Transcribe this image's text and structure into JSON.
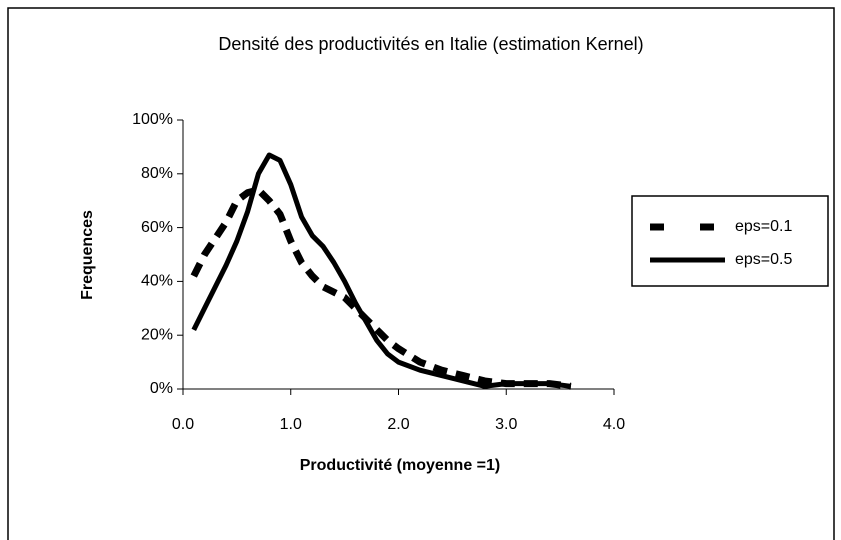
{
  "chart_data": {
    "type": "line",
    "title": "Densité des productivités en Italie (estimation Kernel)",
    "x_label": "Productivité (moyenne =1)",
    "y_label": "Frequences",
    "x": [
      0.1,
      0.2,
      0.3,
      0.4,
      0.5,
      0.6,
      0.7,
      0.8,
      0.9,
      1.0,
      1.1,
      1.2,
      1.3,
      1.4,
      1.5,
      1.6,
      1.7,
      1.8,
      1.9,
      2.0,
      2.2,
      2.4,
      2.6,
      2.8,
      3.0,
      3.2,
      3.4,
      3.6
    ],
    "series": [
      {
        "name": "eps=0.1",
        "color": "#000000",
        "dash": true,
        "values": [
          42,
          50,
          56,
          62,
          70,
          73,
          74,
          70,
          65,
          55,
          47,
          42,
          38,
          36,
          34,
          30,
          26,
          22,
          18,
          15,
          10,
          7,
          5,
          3,
          2,
          2,
          2,
          1
        ]
      },
      {
        "name": "eps=0.5",
        "color": "#000000",
        "dash": false,
        "values": [
          22,
          30,
          38,
          46,
          55,
          66,
          80,
          87,
          85,
          76,
          64,
          57,
          53,
          47,
          40,
          32,
          25,
          18,
          13,
          10,
          7,
          5,
          3,
          1,
          2,
          2,
          2,
          1
        ]
      }
    ],
    "xlim": [
      0,
      4
    ],
    "xticks": [
      {
        "value": 0,
        "label": "0.0"
      },
      {
        "value": 1,
        "label": "1.0"
      },
      {
        "value": 2,
        "label": "2.0"
      },
      {
        "value": 3,
        "label": "3.0"
      },
      {
        "value": 4,
        "label": "4.0"
      }
    ],
    "ylim": [
      0,
      100
    ],
    "yticks": [
      {
        "value": 0,
        "label": "0%"
      },
      {
        "value": 20,
        "label": "20%"
      },
      {
        "value": 40,
        "label": "40%"
      },
      {
        "value": 60,
        "label": "60%"
      },
      {
        "value": 80,
        "label": "80%"
      },
      {
        "value": 100,
        "label": "100%"
      }
    ],
    "grid": false,
    "legend": "right"
  }
}
